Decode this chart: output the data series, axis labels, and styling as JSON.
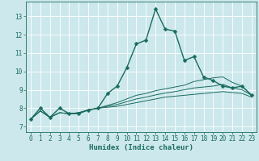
{
  "title": "",
  "xlabel": "Humidex (Indice chaleur)",
  "background_color": "#cce8ec",
  "grid_color": "#ffffff",
  "line_color": "#1a6b5e",
  "xlim": [
    -0.5,
    23.5
  ],
  "ylim": [
    6.7,
    13.8
  ],
  "yticks": [
    7,
    8,
    9,
    10,
    11,
    12,
    13
  ],
  "xticks": [
    0,
    1,
    2,
    3,
    4,
    5,
    6,
    7,
    8,
    9,
    10,
    11,
    12,
    13,
    14,
    15,
    16,
    17,
    18,
    19,
    20,
    21,
    22,
    23
  ],
  "lines": [
    {
      "x": [
        0,
        1,
        2,
        3,
        4,
        5,
        6,
        7,
        8,
        9,
        10,
        11,
        12,
        13,
        14,
        15,
        16,
        17,
        18,
        19,
        20,
        21,
        22,
        23
      ],
      "y": [
        7.4,
        8.0,
        7.5,
        8.0,
        7.7,
        7.7,
        7.9,
        8.0,
        8.8,
        9.2,
        10.2,
        11.5,
        11.7,
        13.4,
        12.3,
        12.2,
        10.6,
        10.8,
        9.7,
        9.5,
        9.2,
        9.1,
        9.2,
        8.7
      ],
      "marker": "D",
      "markersize": 2.5,
      "linewidth": 1.0,
      "color": "#1a6b5e"
    },
    {
      "x": [
        0,
        1,
        2,
        3,
        4,
        5,
        6,
        7,
        8,
        9,
        10,
        11,
        12,
        13,
        14,
        15,
        16,
        17,
        18,
        19,
        20,
        21,
        22,
        23
      ],
      "y": [
        7.4,
        7.85,
        7.5,
        7.75,
        7.7,
        7.75,
        7.9,
        8.0,
        8.05,
        8.1,
        8.2,
        8.3,
        8.4,
        8.5,
        8.6,
        8.65,
        8.7,
        8.75,
        8.8,
        8.85,
        8.9,
        8.85,
        8.8,
        8.6
      ],
      "marker": null,
      "markersize": 0,
      "linewidth": 0.7,
      "color": "#1a6b5e"
    },
    {
      "x": [
        0,
        1,
        2,
        3,
        4,
        5,
        6,
        7,
        8,
        9,
        10,
        11,
        12,
        13,
        14,
        15,
        16,
        17,
        18,
        19,
        20,
        21,
        22,
        23
      ],
      "y": [
        7.4,
        7.85,
        7.5,
        7.75,
        7.7,
        7.75,
        7.9,
        8.0,
        8.1,
        8.2,
        8.35,
        8.5,
        8.6,
        8.72,
        8.82,
        8.9,
        9.0,
        9.1,
        9.15,
        9.2,
        9.3,
        9.1,
        9.0,
        8.7
      ],
      "marker": null,
      "markersize": 0,
      "linewidth": 0.7,
      "color": "#1a6b5e"
    },
    {
      "x": [
        0,
        1,
        2,
        3,
        4,
        5,
        6,
        7,
        8,
        9,
        10,
        11,
        12,
        13,
        14,
        15,
        16,
        17,
        18,
        19,
        20,
        21,
        22,
        23
      ],
      "y": [
        7.4,
        7.85,
        7.5,
        7.75,
        7.7,
        7.75,
        7.9,
        8.0,
        8.15,
        8.3,
        8.5,
        8.7,
        8.8,
        8.95,
        9.05,
        9.15,
        9.25,
        9.45,
        9.55,
        9.65,
        9.7,
        9.4,
        9.2,
        8.7
      ],
      "marker": null,
      "markersize": 0,
      "linewidth": 0.7,
      "color": "#1a6b5e"
    }
  ],
  "tick_fontsize": 5.5,
  "xlabel_fontsize": 6.5,
  "xlabel_fontweight": "bold"
}
